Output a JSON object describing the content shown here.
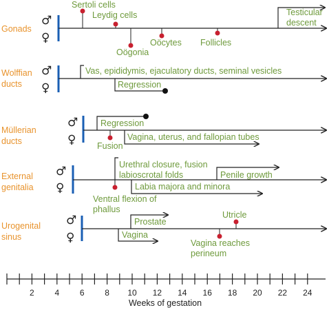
{
  "rows": {
    "gonads": {
      "name": "Gonads",
      "male_symbol": "♂",
      "female_symbol": "♀",
      "labels": {
        "sertoli": "Sertoli cells",
        "leydig": "Leydig cells",
        "oogonia": "Oögonia",
        "oocytes": "Oöcytes",
        "follicles": "Follicles",
        "testicular1": "Testicular",
        "testicular2": "descent"
      }
    },
    "wolffian": {
      "name1": "Wolffian",
      "name2": "ducts",
      "male_symbol": "♂",
      "female_symbol": "♀",
      "labels": {
        "vas": "Vas, epididymis, ejaculatory ducts, seminal vesicles",
        "regression": "Regression"
      }
    },
    "mullerian": {
      "name1": "Müllerian",
      "name2": "ducts",
      "male_symbol": "♂",
      "female_symbol": "♀",
      "labels": {
        "regression": "Regression",
        "fusion": "Fusion",
        "vagina": "Vagina, uterus, and fallopian tubes"
      }
    },
    "external": {
      "name1": "External",
      "name2": "genitalia",
      "male_symbol": "♂",
      "female_symbol": "♀",
      "labels": {
        "urethral1": "Urethral closure, fusion",
        "urethral2": "labioscrotal folds",
        "penile": "Penile growth",
        "labia": "Labia majora and minora",
        "ventral1": "Ventral flexion of",
        "ventral2": "phallus"
      }
    },
    "urogenital": {
      "name1": "Urogenital",
      "name2": "sinus",
      "male_symbol": "♂",
      "female_symbol": "♀",
      "labels": {
        "utricle": "Utricle",
        "prostate": "Prostate",
        "vagina": "Vagina",
        "reaches1": "Vagina reaches",
        "reaches2": "perineum"
      }
    }
  },
  "axis": {
    "title": "Weeks of gestation",
    "ticks": [
      "2",
      "4",
      "6",
      "8",
      "10",
      "12",
      "14",
      "16",
      "18",
      "20",
      "22",
      "24"
    ]
  },
  "colors": {
    "label_green": "#6e9a3c",
    "row_orange": "#e8932d",
    "bar_blue": "#1a5fb4",
    "dot_red": "#c8202f",
    "line": "#222222"
  }
}
